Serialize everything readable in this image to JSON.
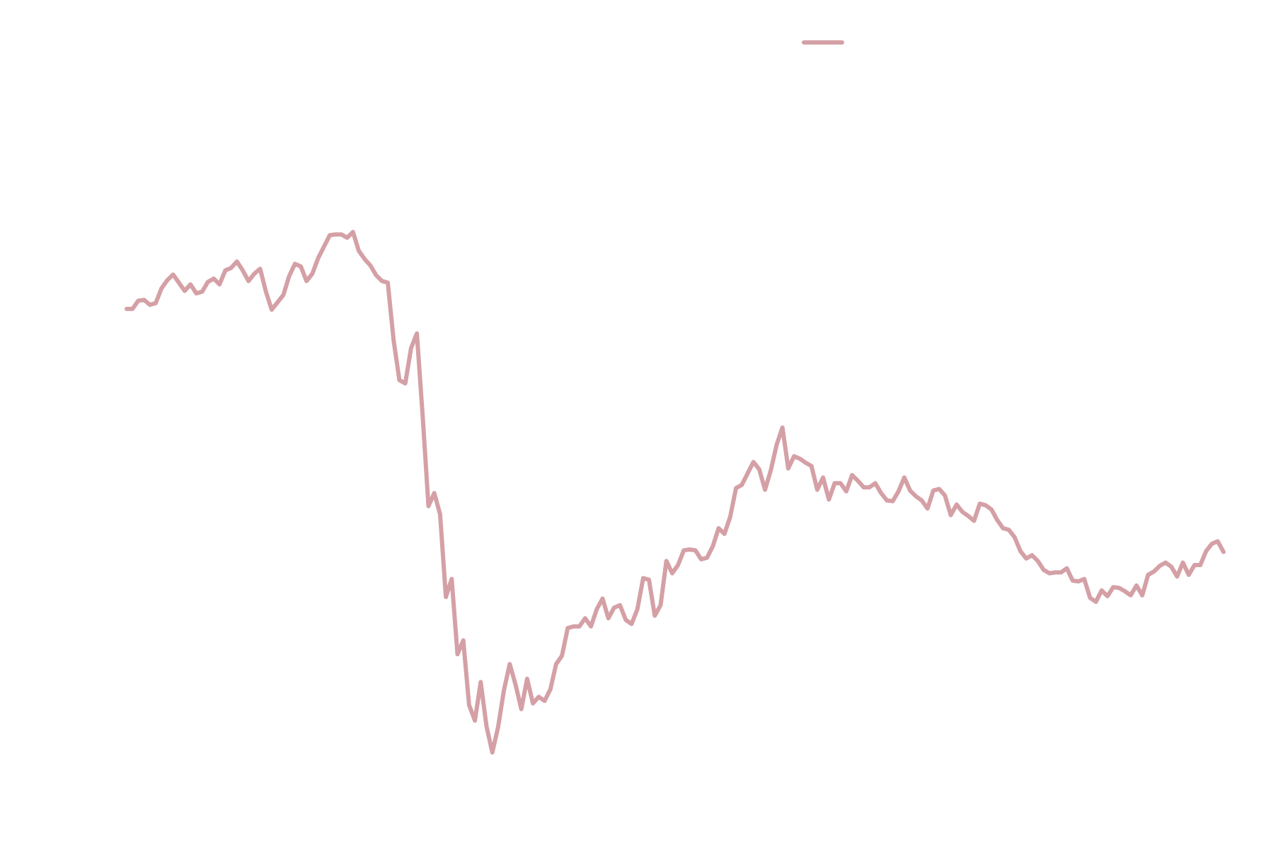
{
  "chart_data": {
    "type": "line",
    "legend": "upper right",
    "series": [
      {
        "color": "#d4a0a6",
        "values": [
          623,
          623,
          633,
          634,
          628,
          630,
          648,
          658,
          665,
          655,
          645,
          653,
          642,
          644,
          656,
          660,
          653,
          670,
          673,
          681,
          670,
          657,
          666,
          672,
          644,
          622,
          631,
          640,
          663,
          678,
          675,
          657,
          666,
          685,
          699,
          713,
          714,
          714,
          710,
          717,
          694,
          684,
          676,
          664,
          657,
          655,
          585,
          536,
          532,
          575,
          593,
          492,
          382,
          398,
          372,
          271,
          293,
          201,
          218,
          139,
          120,
          167,
          113,
          81,
          112,
          157,
          189,
          164,
          134,
          171,
          141,
          149,
          144,
          158,
          189,
          199,
          233,
          235,
          235,
          245,
          235,
          256,
          269,
          245,
          258,
          261,
          243,
          238,
          256,
          294,
          292,
          248,
          261,
          315,
          300,
          310,
          328,
          329,
          328,
          317,
          319,
          333,
          355,
          348,
          369,
          404,
          408,
          422,
          436,
          427,
          402,
          426,
          457,
          478,
          428,
          443,
          440,
          435,
          431,
          402,
          417,
          390,
          410,
          410,
          400,
          420,
          413,
          405,
          405,
          410,
          398,
          389,
          388,
          400,
          417,
          401,
          394,
          389,
          379,
          401,
          403,
          395,
          371,
          384,
          375,
          370,
          364,
          385,
          383,
          378,
          365,
          355,
          353,
          344,
          327,
          318,
          322,
          315,
          304,
          300,
          301,
          301,
          306,
          291,
          290,
          293,
          270,
          265,
          279,
          272,
          283,
          282,
          278,
          273,
          285,
          273,
          298,
          302,
          309,
          313,
          308,
          296,
          313,
          298,
          310,
          310,
          327,
          336,
          339,
          326
        ]
      }
    ]
  }
}
